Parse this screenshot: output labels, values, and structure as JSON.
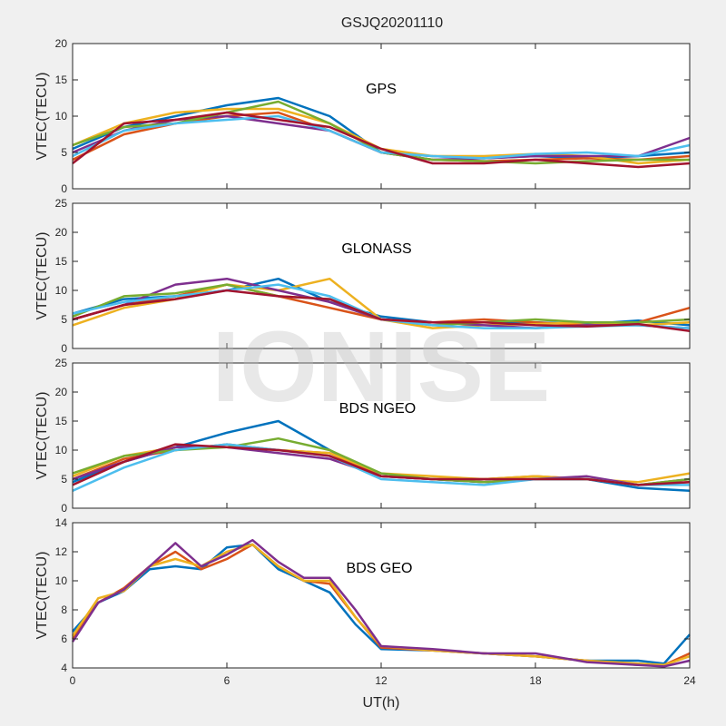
{
  "title": "GSJQ20201110",
  "watermark": "IONISE",
  "colors": [
    "#0072BD",
    "#D95319",
    "#EDB120",
    "#7E2F8E",
    "#77AC30",
    "#4DBEEE",
    "#A2142F"
  ],
  "chart_data": [
    {
      "type": "line",
      "annotation": "GPS",
      "xlabel": "",
      "ylabel": "VTEC(TECU)",
      "xlim": [
        0,
        24
      ],
      "ylim": [
        0,
        20
      ],
      "xticks": [
        0,
        6,
        12,
        18,
        24
      ],
      "yticks": [
        0,
        5,
        10,
        15,
        20
      ],
      "grid": false,
      "series": [
        {
          "x": [
            0,
            2,
            4,
            6,
            8,
            10,
            12,
            14,
            16,
            18,
            20,
            22,
            24
          ],
          "y": [
            5.5,
            8.5,
            10,
            11.5,
            12.5,
            10,
            5,
            4.5,
            4.2,
            4.5,
            4.2,
            4.5,
            5
          ]
        },
        {
          "x": [
            0,
            2,
            4,
            6,
            8,
            10,
            12,
            14,
            16,
            18,
            20,
            22,
            24
          ],
          "y": [
            4,
            7.5,
            9,
            10,
            10.5,
            8,
            5,
            4,
            3.8,
            4,
            4.2,
            4,
            4.5
          ]
        },
        {
          "x": [
            0,
            2,
            4,
            6,
            8,
            10,
            12,
            14,
            16,
            18,
            20,
            22,
            24
          ],
          "y": [
            6,
            9,
            10.5,
            11,
            11,
            9,
            5.5,
            4.5,
            4.5,
            4.8,
            4.5,
            3.5,
            4
          ]
        },
        {
          "x": [
            0,
            2,
            4,
            6,
            8,
            10,
            12,
            14,
            16,
            18,
            20,
            22,
            24
          ],
          "y": [
            5,
            8,
            9.5,
            10,
            9,
            8,
            5,
            4,
            4.2,
            4.5,
            4.5,
            4.5,
            7
          ]
        },
        {
          "x": [
            0,
            2,
            4,
            6,
            8,
            10,
            12,
            14,
            16,
            18,
            20,
            22,
            24
          ],
          "y": [
            6,
            8.5,
            9,
            10.5,
            12,
            9,
            5,
            4,
            3.8,
            3.5,
            3.8,
            4,
            4
          ]
        },
        {
          "x": [
            0,
            2,
            4,
            6,
            8,
            10,
            12,
            14,
            16,
            18,
            20,
            22,
            24
          ],
          "y": [
            4.5,
            8,
            9,
            9.5,
            10,
            8,
            5,
            4.5,
            4.2,
            4.8,
            5,
            4.5,
            6
          ]
        },
        {
          "x": [
            0,
            2,
            4,
            6,
            8,
            10,
            12,
            14,
            16,
            18,
            20,
            22,
            24
          ],
          "y": [
            3.5,
            9,
            9.5,
            10.5,
            9.5,
            8.5,
            5.5,
            3.5,
            3.5,
            4,
            3.5,
            3,
            3.5
          ]
        }
      ]
    },
    {
      "type": "line",
      "annotation": "GLONASS",
      "xlabel": "",
      "ylabel": "VTEC(TECU)",
      "xlim": [
        0,
        24
      ],
      "ylim": [
        0,
        25
      ],
      "xticks": [
        0,
        6,
        12,
        18,
        24
      ],
      "yticks": [
        0,
        5,
        10,
        15,
        20,
        25
      ],
      "grid": false,
      "series": [
        {
          "x": [
            0,
            2,
            4,
            6,
            8,
            10,
            12,
            14,
            16,
            18,
            20,
            22,
            24
          ],
          "y": [
            6,
            8.5,
            9,
            10,
            12,
            8,
            5.5,
            4.5,
            4.5,
            4.5,
            4.2,
            4.8,
            4
          ]
        },
        {
          "x": [
            0,
            2,
            4,
            6,
            8,
            10,
            12,
            14,
            16,
            18,
            20,
            22,
            24
          ],
          "y": [
            5,
            7.5,
            9,
            11,
            9,
            7,
            5,
            4.5,
            5,
            4.5,
            4,
            4.5,
            7
          ]
        },
        {
          "x": [
            0,
            2,
            4,
            6,
            8,
            10,
            12,
            14,
            16,
            18,
            20,
            22,
            24
          ],
          "y": [
            4,
            7,
            8.5,
            11,
            10,
            12,
            5,
            3.5,
            4,
            4.2,
            4.5,
            4,
            4.5
          ]
        },
        {
          "x": [
            0,
            2,
            4,
            6,
            8,
            10,
            12,
            14,
            16,
            18,
            20,
            22,
            24
          ],
          "y": [
            5,
            7.5,
            11,
            12,
            10,
            8,
            5,
            4.5,
            4,
            3.5,
            4,
            4,
            3.5
          ]
        },
        {
          "x": [
            0,
            2,
            4,
            6,
            8,
            10,
            12,
            14,
            16,
            18,
            20,
            22,
            24
          ],
          "y": [
            5.5,
            9,
            9.5,
            11,
            9,
            8.5,
            5,
            4,
            4.5,
            5,
            4.5,
            4.5,
            5
          ]
        },
        {
          "x": [
            0,
            2,
            4,
            6,
            8,
            10,
            12,
            14,
            16,
            18,
            20,
            22,
            24
          ],
          "y": [
            6,
            8,
            9,
            10,
            11,
            9,
            5,
            4,
            3.5,
            3.5,
            3.8,
            4,
            3.5
          ]
        },
        {
          "x": [
            0,
            2,
            4,
            6,
            8,
            10,
            12,
            14,
            16,
            18,
            20,
            22,
            24
          ],
          "y": [
            5,
            7.5,
            8.5,
            10,
            9,
            8.5,
            5,
            4.5,
            4.5,
            4,
            3.8,
            4.2,
            3
          ]
        }
      ]
    },
    {
      "type": "line",
      "annotation": "BDS NGEO",
      "xlabel": "",
      "ylabel": "VTEC(TECU)",
      "xlim": [
        0,
        24
      ],
      "ylim": [
        0,
        25
      ],
      "xticks": [
        0,
        6,
        12,
        18,
        24
      ],
      "yticks": [
        0,
        5,
        10,
        15,
        20,
        25
      ],
      "grid": false,
      "series": [
        {
          "x": [
            0,
            2,
            4,
            6,
            8,
            10,
            12,
            14,
            16,
            18,
            20,
            22,
            24
          ],
          "y": [
            4.5,
            8,
            10.5,
            13,
            15,
            10,
            5.5,
            5,
            4.5,
            5,
            5,
            3.5,
            3
          ]
        },
        {
          "x": [
            0,
            2,
            4,
            6,
            8,
            10,
            12,
            14,
            16,
            18,
            20,
            22,
            24
          ],
          "y": [
            5,
            8.5,
            10,
            11,
            10,
            9.5,
            5.5,
            5,
            5,
            5.5,
            5,
            4,
            4.5
          ]
        },
        {
          "x": [
            0,
            2,
            4,
            6,
            8,
            10,
            12,
            14,
            16,
            18,
            20,
            22,
            24
          ],
          "y": [
            5.5,
            9,
            10.5,
            10.5,
            10,
            9.5,
            6,
            5.5,
            5,
            5.5,
            5,
            4.5,
            6
          ]
        },
        {
          "x": [
            0,
            2,
            4,
            6,
            8,
            10,
            12,
            14,
            16,
            18,
            20,
            22,
            24
          ],
          "y": [
            5,
            8,
            10.5,
            10.5,
            9.5,
            8.5,
            5.5,
            5,
            4.5,
            5,
            5.5,
            4,
            5
          ]
        },
        {
          "x": [
            0,
            2,
            4,
            6,
            8,
            10,
            12,
            14,
            16,
            18,
            20,
            22,
            24
          ],
          "y": [
            6,
            9,
            10,
            10.5,
            12,
            10,
            6,
            5,
            4.5,
            5,
            5,
            4,
            5
          ]
        },
        {
          "x": [
            0,
            2,
            4,
            6,
            8,
            10,
            12,
            14,
            16,
            18,
            20,
            22,
            24
          ],
          "y": [
            3,
            7,
            10,
            11,
            10,
            9,
            5,
            4.5,
            4,
            5,
            5,
            4,
            4
          ]
        },
        {
          "x": [
            0,
            2,
            4,
            6,
            8,
            10,
            12,
            14,
            16,
            18,
            20,
            22,
            24
          ],
          "y": [
            4,
            8,
            11,
            10.5,
            10,
            9,
            5.5,
            5,
            5,
            5,
            5,
            4,
            4.5
          ]
        }
      ]
    },
    {
      "type": "line",
      "annotation": "BDS GEO",
      "xlabel": "UT(h)",
      "ylabel": "VTEC(TECU)",
      "xlim": [
        0,
        24
      ],
      "ylim": [
        4,
        14
      ],
      "xticks": [
        0,
        6,
        12,
        18,
        24
      ],
      "yticks": [
        4,
        6,
        8,
        10,
        12,
        14
      ],
      "grid": false,
      "series": [
        {
          "x": [
            0,
            1,
            2,
            3,
            4,
            5,
            6,
            7,
            8,
            9,
            10,
            11,
            12,
            14,
            16,
            18,
            20,
            22,
            23,
            24
          ],
          "y": [
            6.5,
            8.5,
            9.3,
            10.8,
            11,
            10.8,
            12.3,
            12.5,
            10.8,
            10,
            9.2,
            7,
            5.3,
            5.2,
            5,
            4.8,
            4.5,
            4.5,
            4.3,
            6.3
          ]
        },
        {
          "x": [
            0,
            1,
            2,
            3,
            4,
            5,
            6,
            7,
            8,
            9,
            10,
            11,
            12,
            14,
            16,
            18,
            20,
            22,
            23,
            24
          ],
          "y": [
            6,
            8.5,
            9.5,
            11,
            12,
            10.8,
            11.5,
            12.5,
            11,
            10,
            9.8,
            7.5,
            5.4,
            5.2,
            5,
            4.8,
            4.5,
            4.2,
            4.2,
            5
          ]
        },
        {
          "x": [
            0,
            1,
            2,
            3,
            4,
            5,
            6,
            7,
            8,
            9,
            10,
            11,
            12,
            14,
            16,
            18,
            20,
            22,
            23,
            24
          ],
          "y": [
            6.2,
            8.8,
            9.3,
            11,
            11.5,
            11,
            12,
            12.5,
            11,
            10,
            10,
            7.5,
            5.5,
            5.2,
            5,
            4.8,
            4.5,
            4.3,
            4.2,
            4.8
          ]
        },
        {
          "x": [
            0,
            1,
            2,
            3,
            4,
            5,
            6,
            7,
            8,
            9,
            10,
            11,
            12,
            14,
            16,
            18,
            20,
            22,
            23,
            24
          ],
          "y": [
            5.8,
            8.5,
            9.4,
            11,
            12.6,
            11,
            11.8,
            12.8,
            11.3,
            10.2,
            10.2,
            8,
            5.5,
            5.3,
            5,
            5,
            4.4,
            4.2,
            4.1,
            4.5
          ]
        }
      ]
    }
  ]
}
